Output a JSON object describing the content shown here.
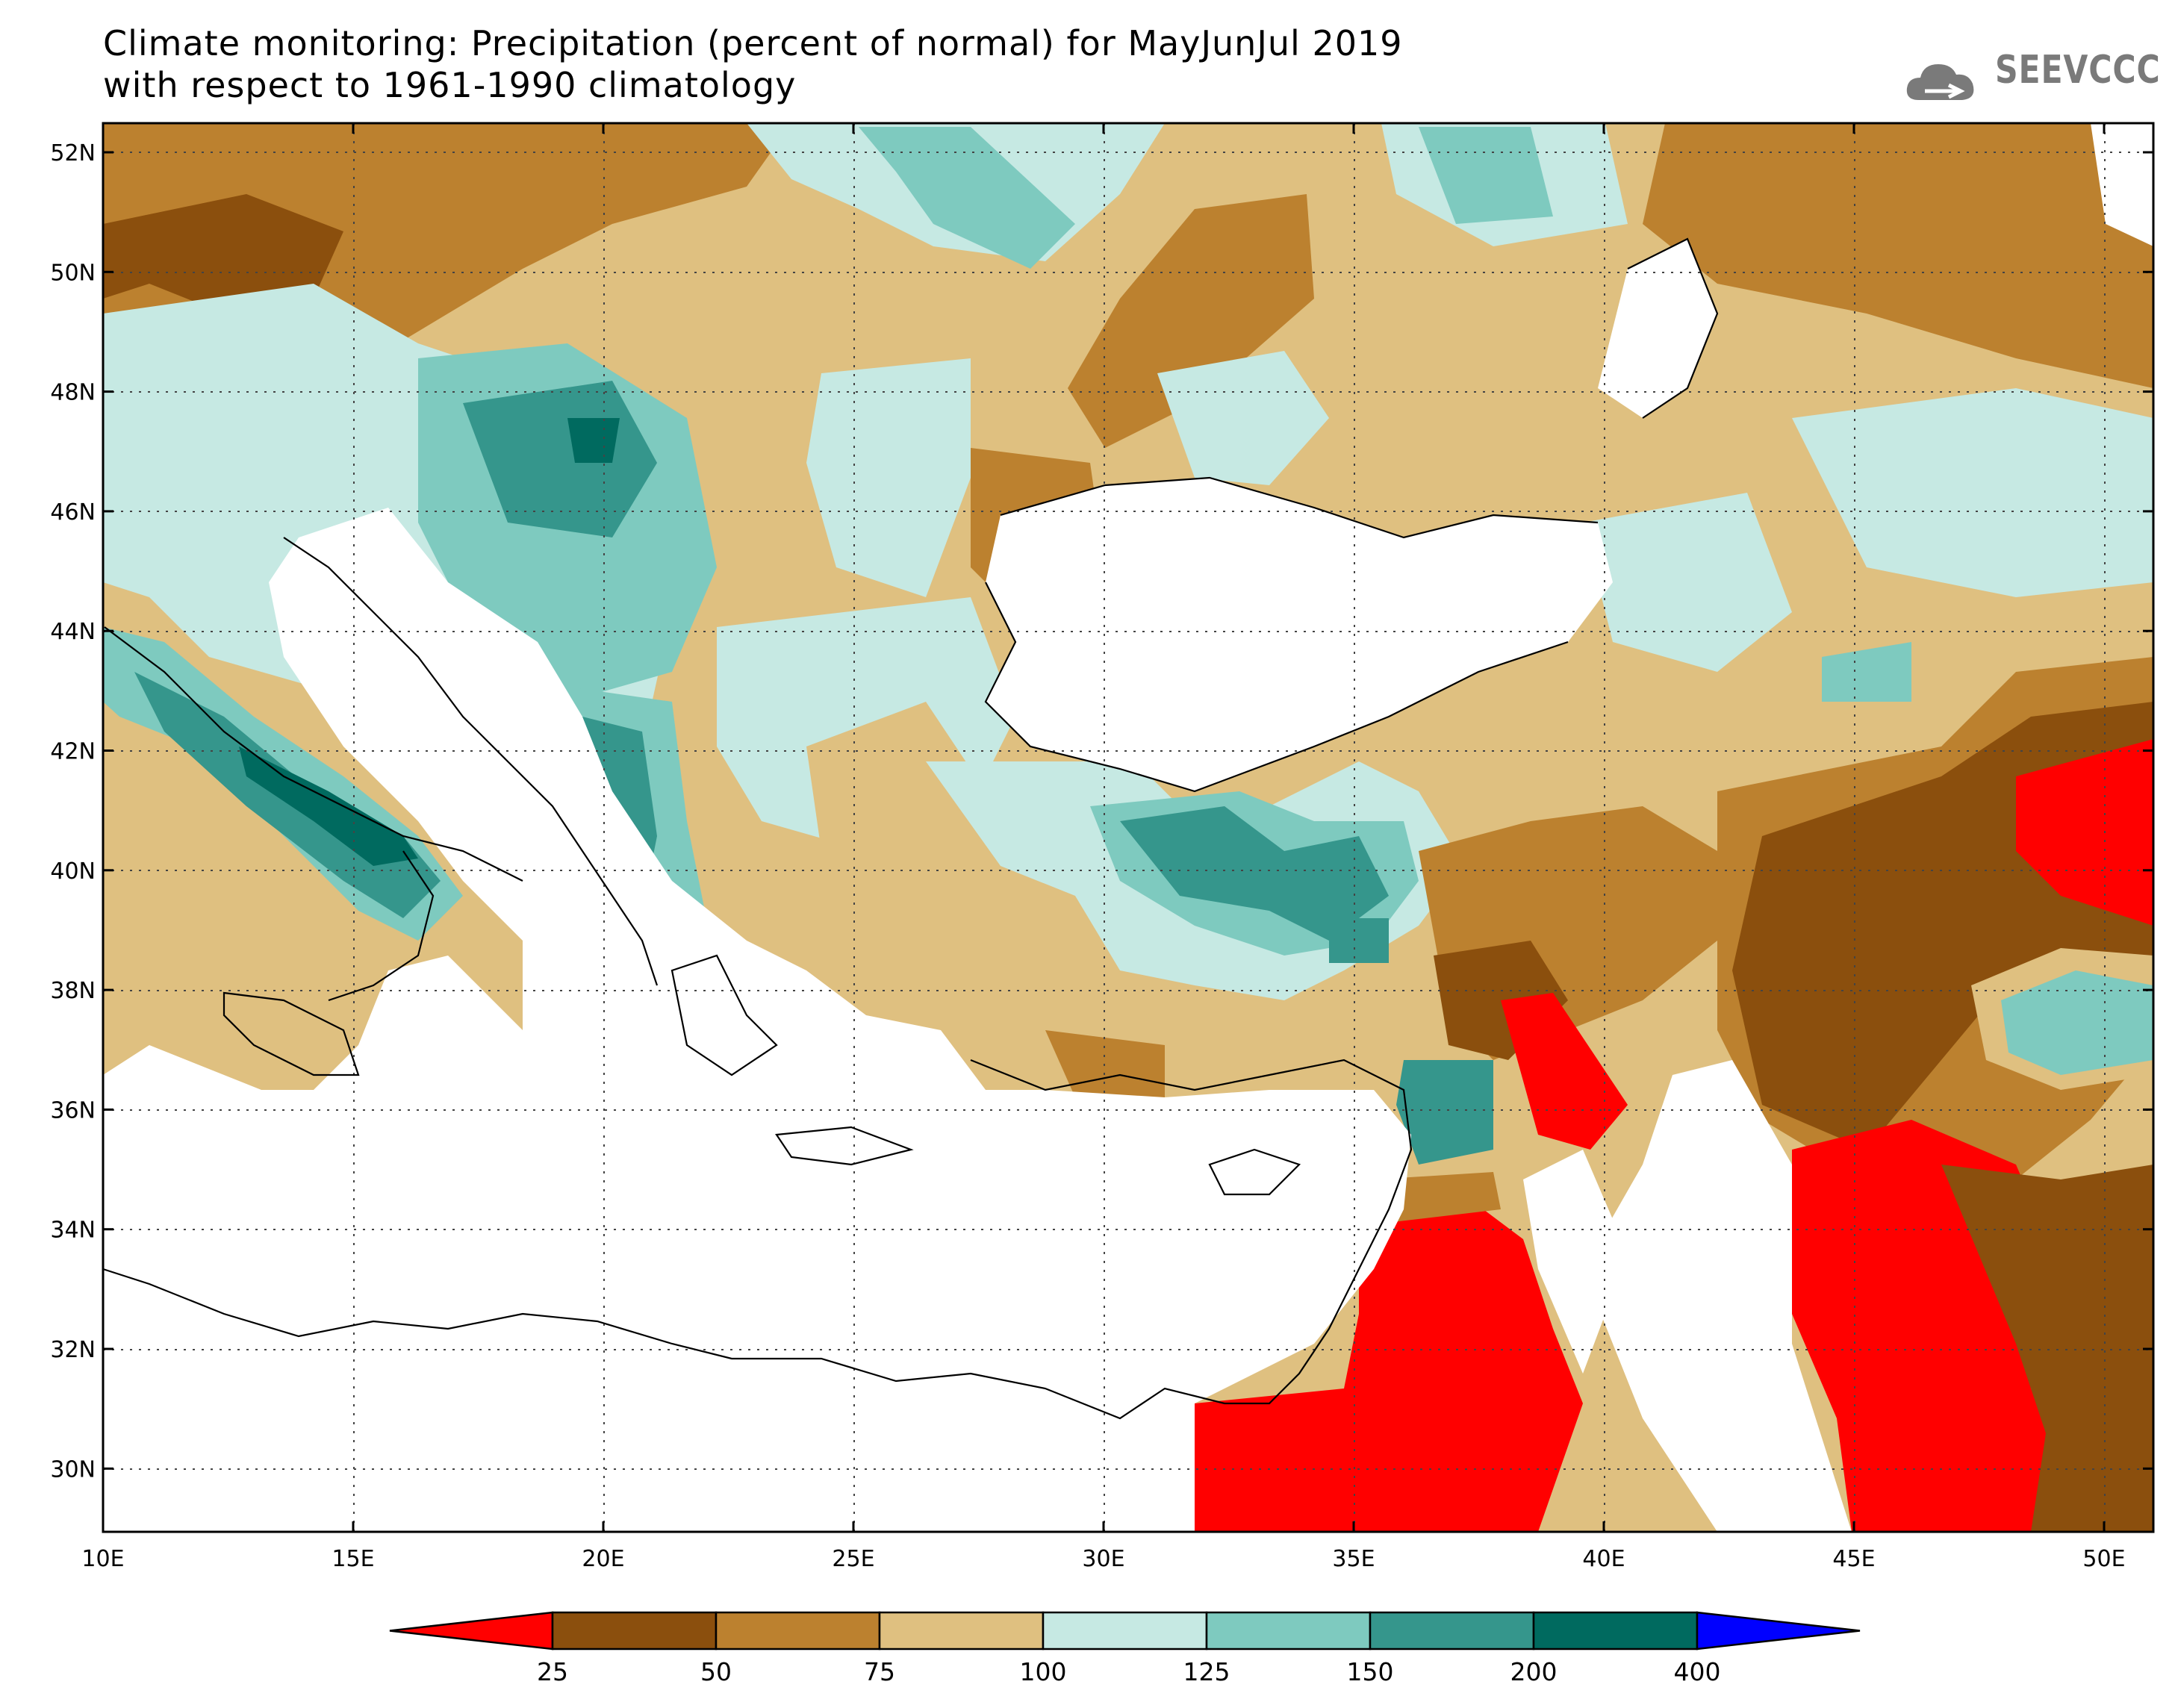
{
  "title": {
    "line1": "Climate monitoring: Precipitation (percent of normal) for MayJunJul 2019",
    "line2": "with respect to 1961-1990 climatology"
  },
  "logo": {
    "text": "SEEVCCC",
    "icon": "cloud-icon"
  },
  "axes": {
    "lon_labels": [
      "10E",
      "15E",
      "20E",
      "25E",
      "30E",
      "35E",
      "40E",
      "45E",
      "50E"
    ],
    "lat_labels": [
      "52N",
      "50N",
      "48N",
      "46N",
      "44N",
      "42N",
      "40N",
      "38N",
      "36N",
      "34N",
      "32N",
      "30N"
    ]
  },
  "colorbar": {
    "labels": [
      "25",
      "50",
      "75",
      "100",
      "125",
      "150",
      "200",
      "400"
    ],
    "colors": [
      "#ff0000",
      "#8b4f0d",
      "#bc812f",
      "#dfc080",
      "#c6e9e3",
      "#7ecabf",
      "#35968c",
      "#006a5f",
      "#0000ff"
    ]
  },
  "palette": {
    "red": "#ff0000",
    "dark_brown": "#8b4f0d",
    "brown": "#bc812f",
    "tan": "#dfc080",
    "light_teal": "#c6e9e3",
    "teal": "#7ecabf",
    "dark_teal": "#35968c",
    "deep_teal": "#006a5f"
  }
}
